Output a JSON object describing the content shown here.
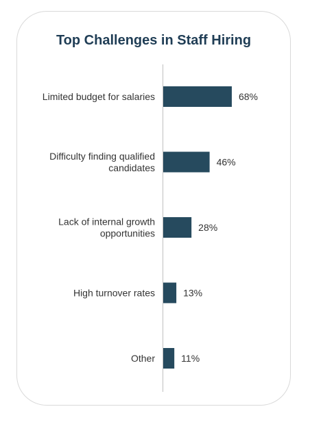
{
  "chart_data": {
    "type": "bar",
    "orientation": "horizontal",
    "title": "Top Challenges in Staff Hiring",
    "categories": [
      "Limited budget for salaries",
      "Difficulty finding qualified candidates",
      "Lack of internal growth opportunities",
      "High turnover rates",
      "Other"
    ],
    "category_lines": [
      [
        "Limited budget for salaries"
      ],
      [
        "Difficulty finding qualified",
        "candidates"
      ],
      [
        "Lack of internal growth",
        "opportunities"
      ],
      [
        "High turnover rates"
      ],
      [
        "Other"
      ]
    ],
    "values": [
      68,
      46,
      28,
      13,
      11
    ],
    "value_labels": [
      "68%",
      "46%",
      "28%",
      "13%",
      "11%"
    ],
    "xlim": [
      0,
      100
    ],
    "grid": false,
    "colors": {
      "bar": "#264a5e",
      "title": "#1f3d55",
      "axis": "#bfbfbf",
      "text": "#333333"
    }
  }
}
